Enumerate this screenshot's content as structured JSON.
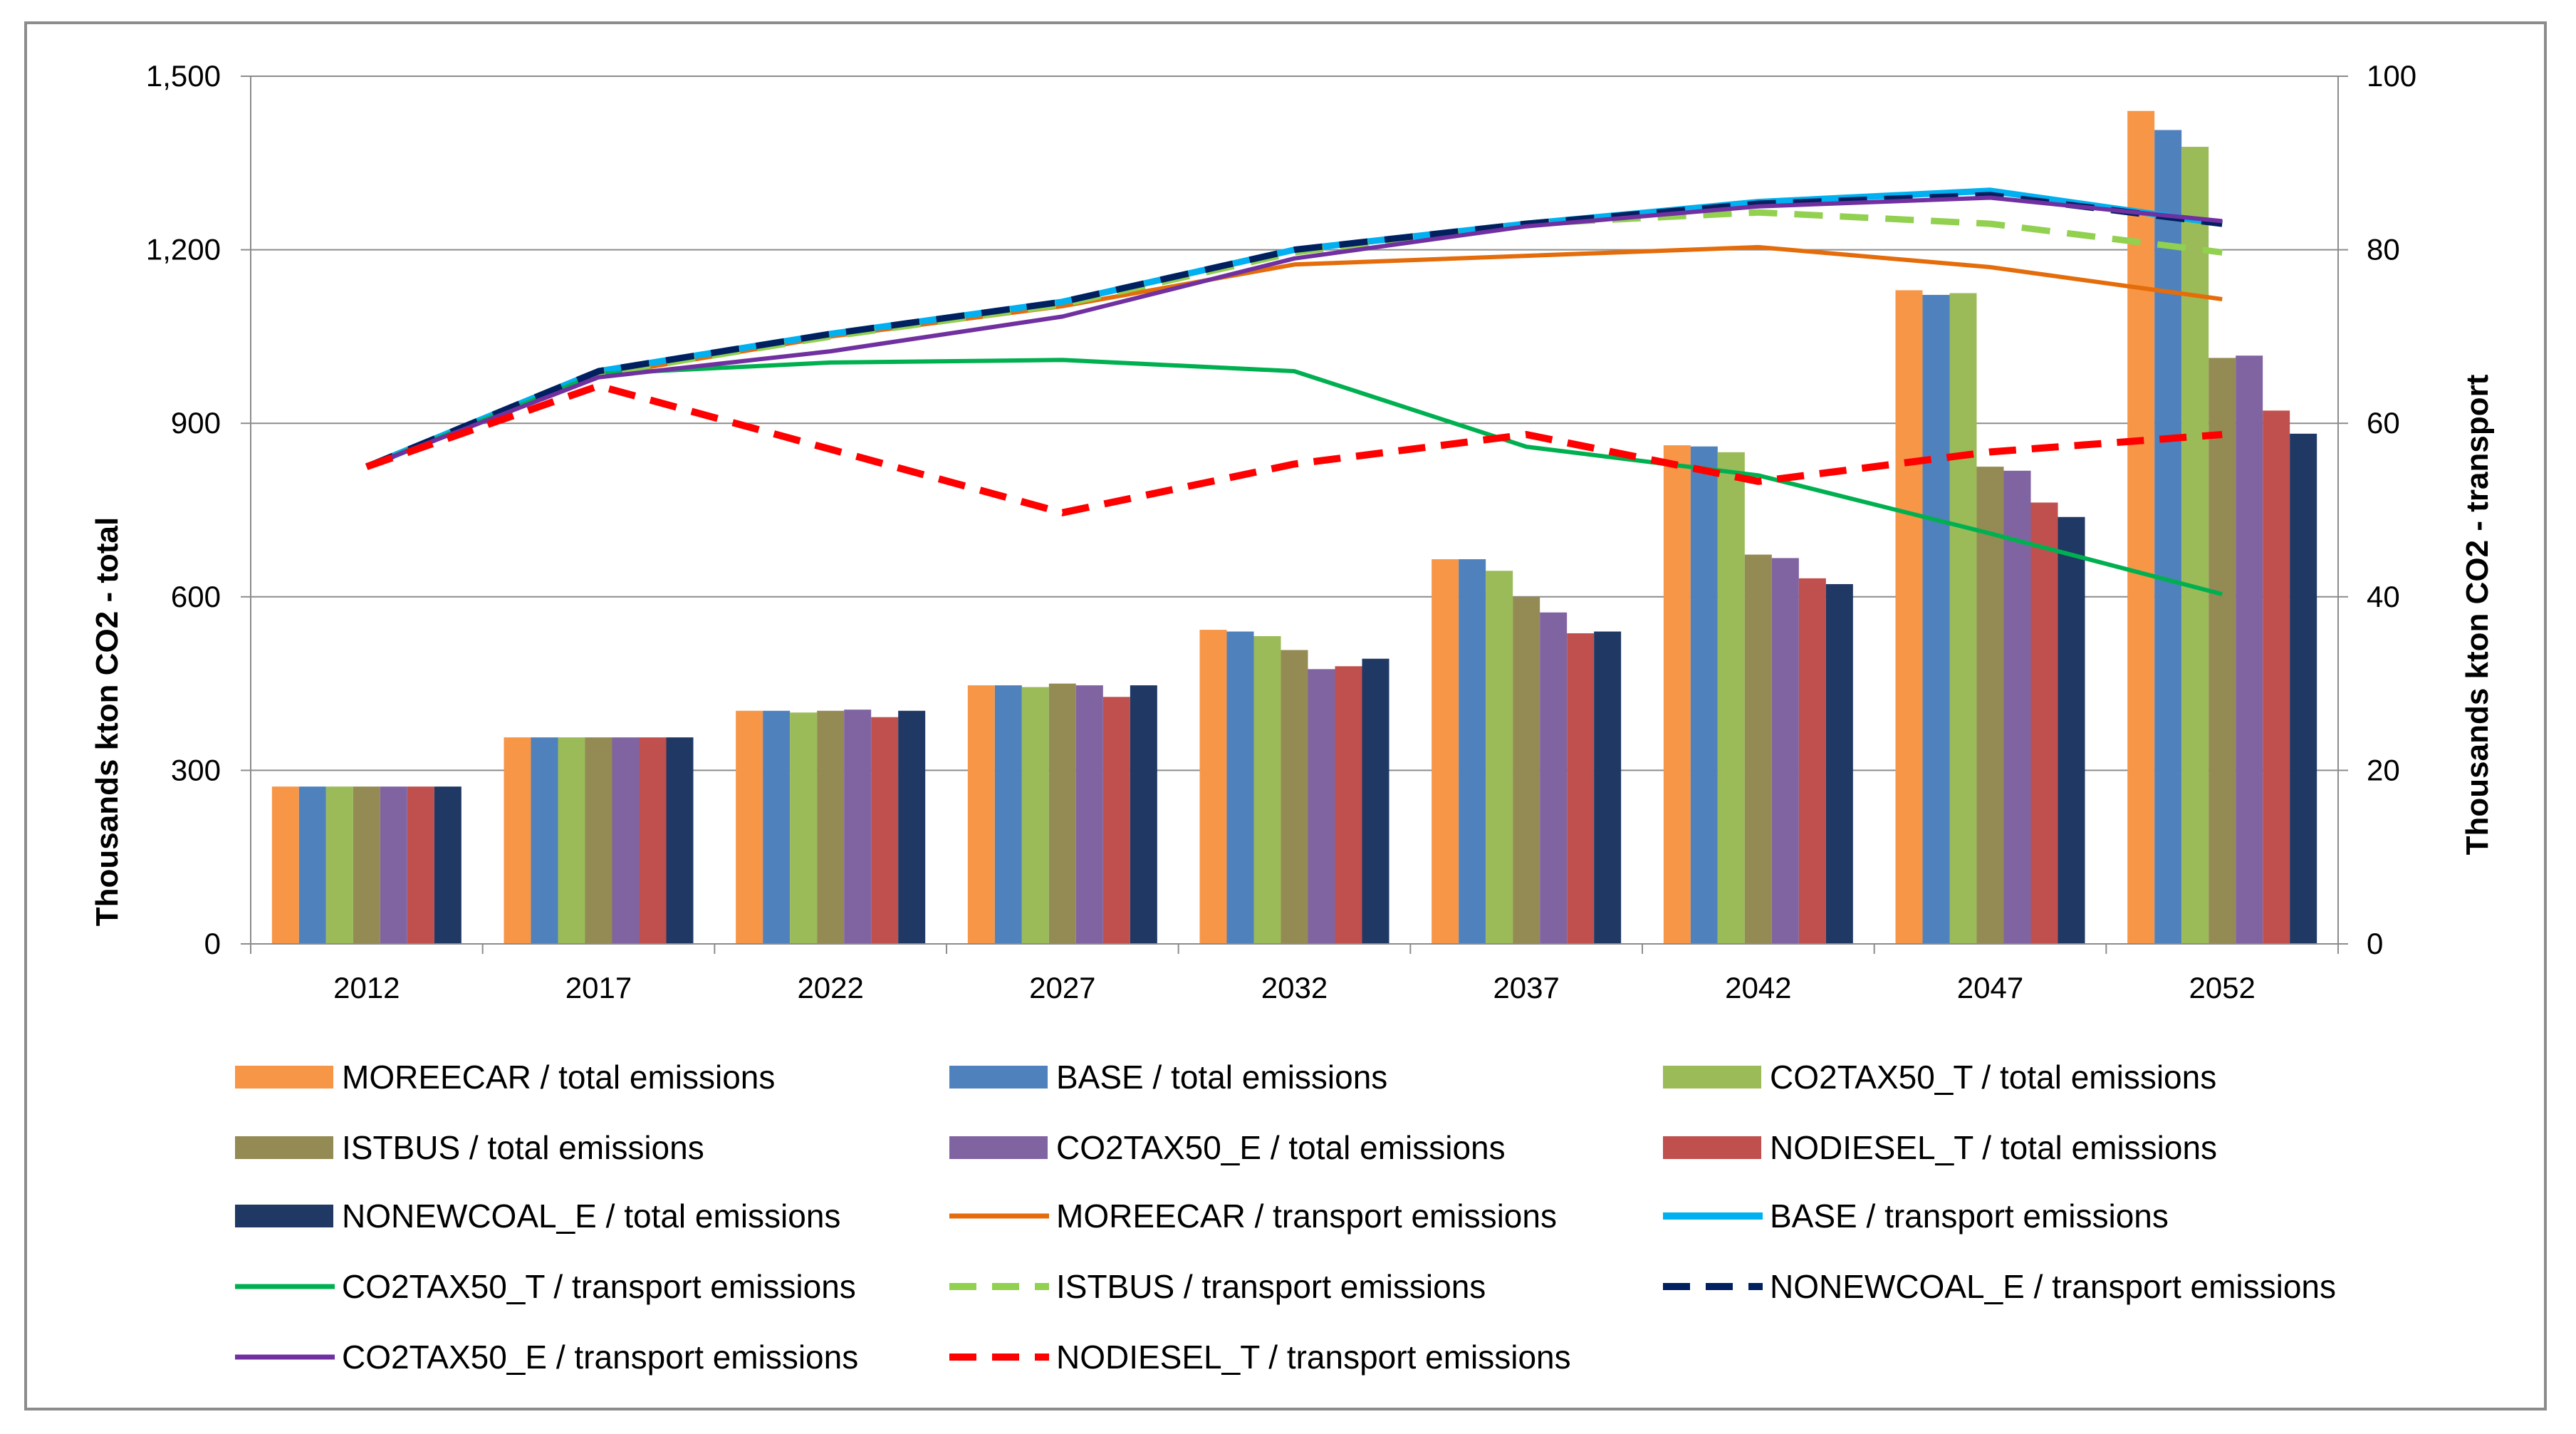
{
  "chart_data": {
    "type": "bar",
    "title": "",
    "xlabel": "",
    "ylabel": "Thousands kton CO2 - total",
    "y2label": "Thousands kton CO2 - transport",
    "ylim": [
      0,
      1500
    ],
    "y2lim": [
      0,
      100
    ],
    "grid": true,
    "legend_position": "bottom",
    "categories": [
      "2012",
      "2017",
      "2022",
      "2027",
      "2032",
      "2037",
      "2042",
      "2047",
      "2052"
    ],
    "y_ticks": [
      {
        "value": 0,
        "label": "0"
      },
      {
        "value": 300,
        "label": "300"
      },
      {
        "value": 600,
        "label": "600"
      },
      {
        "value": 900,
        "label": "900"
      },
      {
        "value": 1200,
        "label": "1,200"
      },
      {
        "value": 1500,
        "label": "1,500"
      }
    ],
    "y2_ticks": [
      {
        "value": 0,
        "label": "0"
      },
      {
        "value": 20,
        "label": "20"
      },
      {
        "value": 40,
        "label": "40"
      },
      {
        "value": 60,
        "label": "60"
      },
      {
        "value": 80,
        "label": "80"
      },
      {
        "value": 100,
        "label": "100"
      }
    ],
    "bar_series": [
      {
        "name": "MOREECAR / total emissions",
        "color": "#f79646",
        "values": [
          272,
          357,
          403,
          447,
          543,
          665,
          862,
          1130,
          1440
        ]
      },
      {
        "name": "BASE / total emissions",
        "color": "#4f81bd",
        "values": [
          272,
          357,
          403,
          447,
          540,
          665,
          860,
          1122,
          1407
        ]
      },
      {
        "name": "CO2TAX50_T / total emissions",
        "color": "#9bbb59",
        "values": [
          272,
          357,
          400,
          444,
          532,
          645,
          850,
          1125,
          1378
        ]
      },
      {
        "name": "ISTBUS / total emissions",
        "color": "#948a54",
        "values": [
          272,
          357,
          403,
          450,
          508,
          600,
          673,
          825,
          1013
        ]
      },
      {
        "name": "CO2TAX50_E / total emissions",
        "color": "#8064a2",
        "values": [
          272,
          357,
          405,
          447,
          475,
          573,
          667,
          818,
          1017
        ]
      },
      {
        "name": "NODIESEL_T / total emissions",
        "color": "#c0504d",
        "values": [
          272,
          357,
          392,
          427,
          480,
          537,
          632,
          763,
          922
        ]
      },
      {
        "name": "NONEWCOAL_E / total emissions",
        "color": "#1f3864",
        "values": [
          272,
          357,
          403,
          447,
          493,
          540,
          622,
          738,
          882
        ]
      }
    ],
    "line_series": [
      {
        "name": "MOREECAR / transport emissions",
        "color": "#e46c0a",
        "width": 6,
        "dash": "",
        "values": [
          55,
          65.5,
          70,
          73.5,
          78.3,
          79.3,
          80.3,
          78,
          74.3
        ]
      },
      {
        "name": "BASE / transport emissions",
        "color": "#00b0f0",
        "width": 9,
        "dash": "",
        "values": [
          55,
          66,
          70.3,
          74,
          80,
          83,
          85.5,
          86.8,
          83
        ]
      },
      {
        "name": "CO2TAX50_T / transport emissions",
        "color": "#00b050",
        "width": 6,
        "dash": "",
        "values": [
          55,
          65.7,
          67,
          67.3,
          66,
          57.3,
          54,
          47.3,
          40.3
        ]
      },
      {
        "name": "ISTBUS / transport emissions",
        "color": "#92d050",
        "width": 9,
        "dash": "40,24",
        "values": [
          55,
          65.7,
          70,
          73.7,
          79.7,
          83,
          84.3,
          83,
          79.7
        ]
      },
      {
        "name": "NONEWCOAL_E / transport emissions",
        "color": "#002060",
        "width": 9,
        "dash": "40,24",
        "values": [
          55,
          66,
          70.3,
          74,
          80,
          83,
          85.3,
          86.3,
          83
        ]
      },
      {
        "name": "CO2TAX50_E / transport emissions",
        "color": "#7030a0",
        "width": 6,
        "dash": "",
        "values": [
          55,
          65.3,
          68.3,
          72.3,
          79,
          82.7,
          85,
          86,
          83.3
        ]
      },
      {
        "name": "NODIESEL_T / transport emissions",
        "color": "#ff0000",
        "width": 10,
        "dash": "38,22",
        "values": [
          55,
          64.3,
          57,
          49.7,
          55.3,
          58.7,
          53.3,
          56.7,
          58.7
        ]
      }
    ],
    "legend": [
      {
        "label": "MOREECAR / total emissions",
        "kind": "bar",
        "color": "#f79646"
      },
      {
        "label": "BASE / total emissions",
        "kind": "bar",
        "color": "#4f81bd"
      },
      {
        "label": "CO2TAX50_T / total emissions",
        "kind": "bar",
        "color": "#9bbb59"
      },
      {
        "label": "ISTBUS / total emissions",
        "kind": "bar",
        "color": "#948a54"
      },
      {
        "label": "CO2TAX50_E / total emissions",
        "kind": "bar",
        "color": "#8064a2"
      },
      {
        "label": "NODIESEL_T / total emissions",
        "kind": "bar",
        "color": "#c0504d"
      },
      {
        "label": "NONEWCOAL_E / total emissions",
        "kind": "bar",
        "color": "#1f3864"
      },
      {
        "label": "MOREECAR / transport emissions",
        "kind": "line",
        "color": "#e46c0a",
        "width": 7,
        "dash": ""
      },
      {
        "label": "BASE / transport emissions",
        "kind": "line",
        "color": "#00b0f0",
        "width": 10,
        "dash": ""
      },
      {
        "label": "CO2TAX50_T / transport emissions",
        "kind": "line",
        "color": "#00b050",
        "width": 7,
        "dash": ""
      },
      {
        "label": "ISTBUS / transport emissions",
        "kind": "line",
        "color": "#92d050",
        "width": 10,
        "dash": "38,22"
      },
      {
        "label": "NONEWCOAL_E / transport emissions",
        "kind": "line",
        "color": "#002060",
        "width": 10,
        "dash": "38,22"
      },
      {
        "label": "CO2TAX50_E / transport emissions",
        "kind": "line",
        "color": "#7030a0",
        "width": 7,
        "dash": ""
      },
      {
        "label": "NODIESEL_T / transport emissions",
        "kind": "line",
        "color": "#ff0000",
        "width": 10,
        "dash": "38,22"
      }
    ]
  }
}
